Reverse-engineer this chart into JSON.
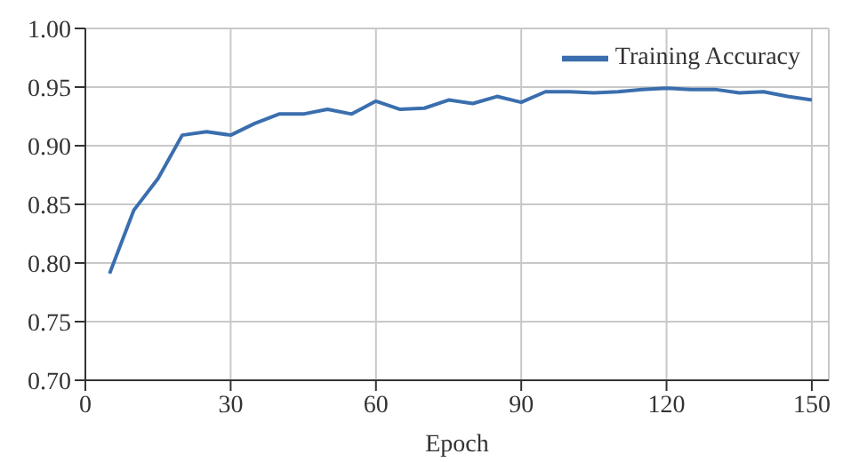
{
  "chart_data": {
    "type": "line",
    "xlabel": "Epoch",
    "x": [
      5,
      10,
      15,
      20,
      25,
      30,
      35,
      40,
      45,
      50,
      55,
      60,
      65,
      70,
      75,
      80,
      85,
      90,
      95,
      100,
      105,
      110,
      115,
      120,
      125,
      130,
      135,
      140,
      145,
      150
    ],
    "series": [
      {
        "name": "Training Accuracy",
        "color": "#3a6eae",
        "values": [
          0.791,
          0.845,
          0.872,
          0.909,
          0.912,
          0.909,
          0.919,
          0.927,
          0.927,
          0.931,
          0.927,
          0.938,
          0.931,
          0.932,
          0.939,
          0.936,
          0.942,
          0.937,
          0.946,
          0.946,
          0.945,
          0.946,
          0.948,
          0.949,
          0.948,
          0.948,
          0.945,
          0.946,
          0.942,
          0.939
        ]
      }
    ],
    "xlim": [
      0,
      153.5
    ],
    "xticks": [
      0,
      30,
      60,
      90,
      120,
      150
    ],
    "ylim": [
      0.7,
      1.0
    ],
    "yticks": [
      {
        "value": 0.7,
        "label": "0.70"
      },
      {
        "value": 0.75,
        "label": "0.75"
      },
      {
        "value": 0.8,
        "label": "0.80"
      },
      {
        "value": 0.85,
        "label": "0.85"
      },
      {
        "value": 0.9,
        "label": "0.90"
      },
      {
        "value": 0.95,
        "label": "0.95"
      },
      {
        "value": 1.0,
        "label": "1.00"
      }
    ],
    "grid": true,
    "legend": "top right",
    "marker": "none",
    "line_style": "solid"
  }
}
